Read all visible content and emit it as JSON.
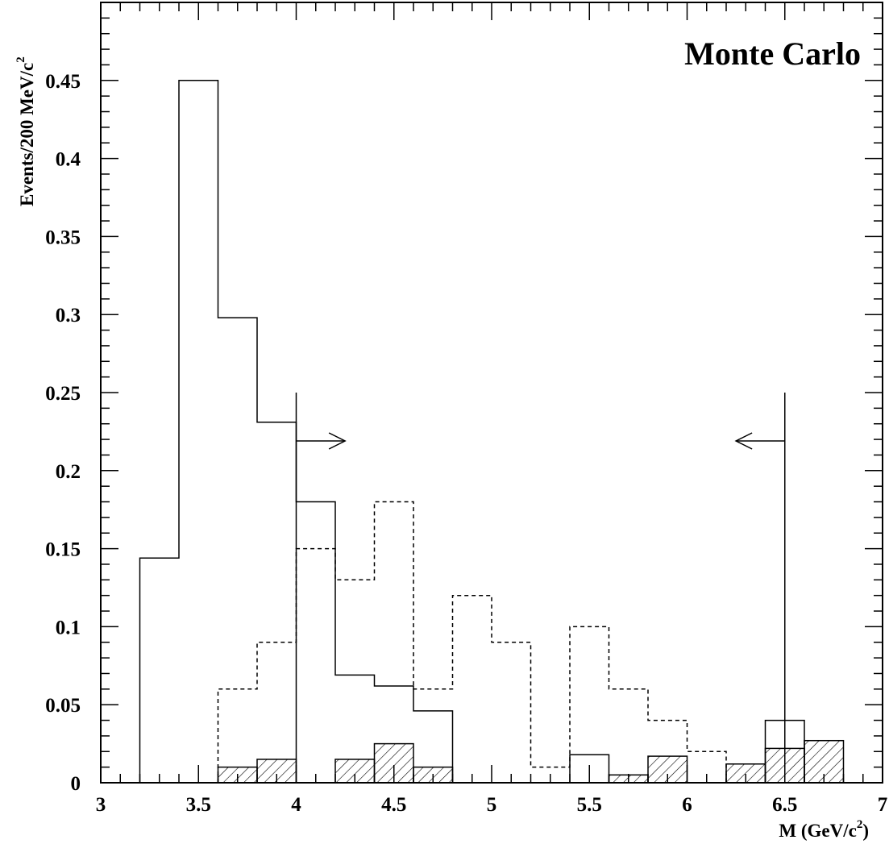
{
  "chart_data": {
    "type": "histogram",
    "annotation": "Monte Carlo",
    "xlabel": {
      "main": "M (GeV/c",
      "sup": "2",
      "close": ")"
    },
    "ylabel": {
      "main": "Events/200 MeV/c",
      "sup": "2"
    },
    "xlim": [
      3,
      7
    ],
    "ylim": [
      0,
      0.5
    ],
    "x_ticks": [
      "3",
      "3.5",
      "4",
      "4.5",
      "5",
      "5.5",
      "6",
      "6.5",
      "7"
    ],
    "y_ticks": [
      "0",
      "0.05",
      "0.1",
      "0.15",
      "0.2",
      "0.25",
      "0.3",
      "0.35",
      "0.4",
      "0.45"
    ],
    "bin_width": 0.2,
    "series": [
      {
        "style": "solid",
        "bin_start": [
          3.2,
          3.4,
          3.6,
          3.8,
          4.0,
          4.2,
          4.4,
          4.6,
          5.4,
          6.4
        ],
        "values": [
          0.144,
          0.45,
          0.298,
          0.231,
          0.18,
          0.069,
          0.062,
          0.046,
          0.018,
          0.04
        ]
      },
      {
        "style": "dashed",
        "bin_start": [
          3.6,
          3.8,
          4.0,
          4.2,
          4.4,
          4.6,
          4.8,
          5.0,
          5.2,
          5.4,
          5.6,
          5.8,
          6.0
        ],
        "values": [
          0.06,
          0.09,
          0.15,
          0.13,
          0.18,
          0.06,
          0.12,
          0.09,
          0.01,
          0.1,
          0.06,
          0.04,
          0.02
        ]
      },
      {
        "style": "hatched",
        "bin_start": [
          3.6,
          3.8,
          4.2,
          4.4,
          4.6,
          5.6,
          5.8,
          6.2,
          6.4,
          6.6
        ],
        "values": [
          0.01,
          0.015,
          0.015,
          0.025,
          0.01,
          0.005,
          0.017,
          0.012,
          0.022,
          0.027
        ]
      }
    ],
    "cut_lines": [
      {
        "x": 4.0,
        "y_top": 0.25,
        "arrow": "right",
        "arrow_y": 0.219,
        "arrow_length": 0.25
      },
      {
        "x": 6.5,
        "y_top": 0.25,
        "arrow": "left",
        "arrow_y": 0.219,
        "arrow_length": 0.25
      }
    ]
  }
}
